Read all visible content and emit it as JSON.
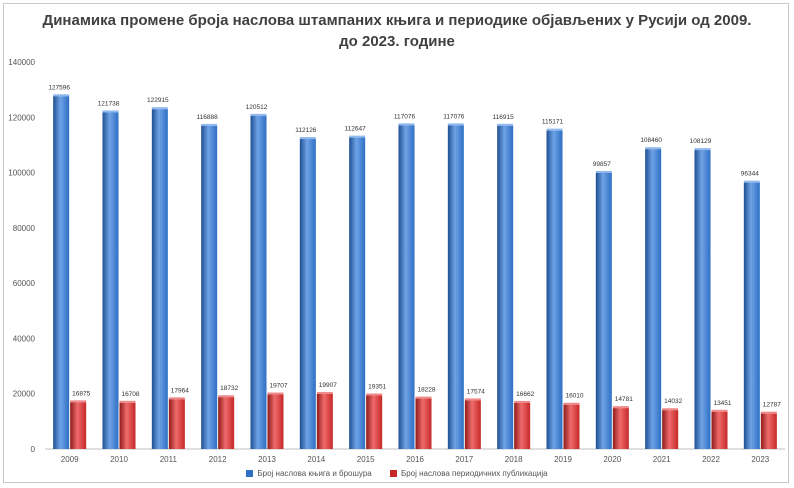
{
  "chart_data": {
    "type": "bar",
    "title_line1": "Динамика промене броја наслова штампаних књига и периодике објављених у Русији од 2009.",
    "title_line2": "до 2023. године",
    "categories": [
      "2009",
      "2010",
      "2011",
      "2012",
      "2013",
      "2014",
      "2015",
      "2016",
      "2017",
      "2018",
      "2019",
      "2020",
      "2021",
      "2022",
      "2023"
    ],
    "series": [
      {
        "name": "Број наслова књига и брошура",
        "color": "#2e6fc4",
        "values": [
          127596,
          121738,
          122915,
          116888,
          120512,
          112126,
          112647,
          117076,
          117076,
          116915,
          115171,
          99857,
          108460,
          108129,
          96344
        ]
      },
      {
        "name": "Број наслова периодичних публикација",
        "color": "#c62828",
        "values": [
          16875,
          16708,
          17964,
          18732,
          19707,
          19907,
          19351,
          18228,
          17574,
          16662,
          16010,
          14781,
          14032,
          13451,
          12787
        ]
      }
    ],
    "y_ticks": [
      "0",
      "20000",
      "40000",
      "60000",
      "80000",
      "100000",
      "120000",
      "140000"
    ],
    "ylim": [
      0,
      140000
    ],
    "legend_position": "bottom",
    "grid": false
  }
}
